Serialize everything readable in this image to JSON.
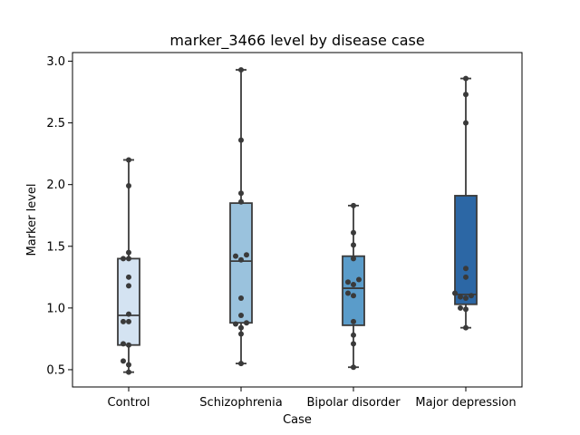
{
  "chart_data": {
    "type": "box",
    "title": "marker_3466 level by disease case",
    "xlabel": "Case",
    "ylabel": "Marker level",
    "ylim": [
      0.36,
      3.07
    ],
    "yticks": [
      0.5,
      1.0,
      1.5,
      2.0,
      2.5,
      3.0
    ],
    "ytick_labels": [
      "0.5",
      "1.0",
      "1.5",
      "2.0",
      "2.5",
      "3.0"
    ],
    "grid": false,
    "legend": "none",
    "categories": [
      "Control",
      "Schizophrenia",
      "Bipolar disorder",
      "Major depression"
    ],
    "colors": [
      "#d4e3f2",
      "#9ac2dd",
      "#5a9cca",
      "#2c67a5"
    ],
    "boxes": [
      {
        "whisker_low": 0.48,
        "q1": 0.7,
        "median": 0.94,
        "q3": 1.4,
        "whisker_high": 2.2
      },
      {
        "whisker_low": 0.55,
        "q1": 0.88,
        "median": 1.38,
        "q3": 1.85,
        "whisker_high": 2.93
      },
      {
        "whisker_low": 0.52,
        "q1": 0.86,
        "median": 1.16,
        "q3": 1.42,
        "whisker_high": 1.83
      },
      {
        "whisker_low": 0.84,
        "q1": 1.03,
        "median": 1.11,
        "q3": 1.91,
        "whisker_high": 2.86
      }
    ],
    "points": [
      [
        2.2,
        1.99,
        1.45,
        1.4,
        1.4,
        1.25,
        1.18,
        0.95,
        0.89,
        0.89,
        0.71,
        0.7,
        0.57,
        0.54,
        0.48
      ],
      [
        2.93,
        2.36,
        1.93,
        1.86,
        1.43,
        1.42,
        1.39,
        1.08,
        0.94,
        0.88,
        0.87,
        0.84,
        0.79,
        0.55
      ],
      [
        1.83,
        1.61,
        1.51,
        1.4,
        1.23,
        1.21,
        1.19,
        1.12,
        1.1,
        0.89,
        0.78,
        0.71,
        0.52
      ],
      [
        2.86,
        2.73,
        2.5,
        1.32,
        1.25,
        1.12,
        1.1,
        1.09,
        1.08,
        1.0,
        0.99,
        0.84
      ]
    ]
  }
}
